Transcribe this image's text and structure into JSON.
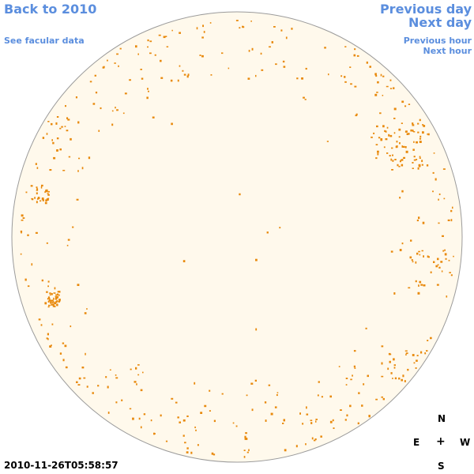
{
  "navigation": {
    "back_label": "Back to 2010",
    "facular_label": "See facular data",
    "prev_day_label": "Previous day",
    "next_day_label": "Next day",
    "prev_hour_label": "Previous hour",
    "next_hour_label": "Next hour"
  },
  "compass": {
    "north": "N",
    "east": "E",
    "west": "W",
    "south": "S",
    "center": "+"
  },
  "timestamp": "2010-11-26T05:58:57",
  "colors": {
    "link": "#5b8ede",
    "disk_fill": "#fff9ec",
    "disk_outline": "#9b9b9b",
    "feature": "#e8890c"
  }
}
